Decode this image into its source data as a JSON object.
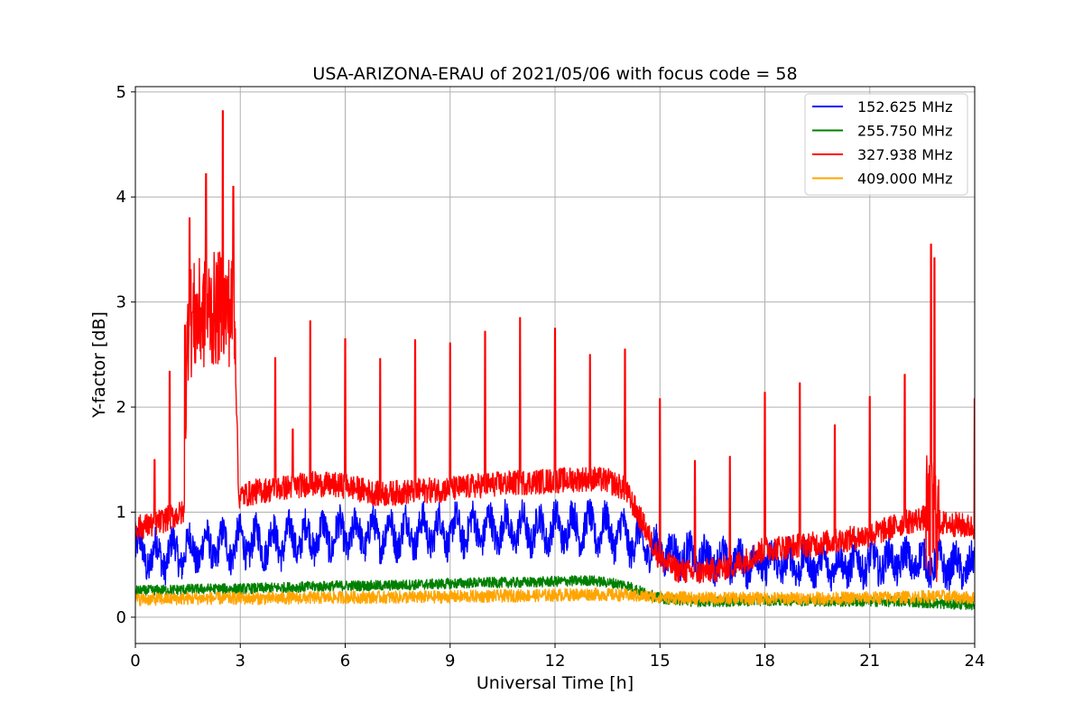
{
  "chart_data": {
    "type": "line",
    "title": "USA-ARIZONA-ERAU of 2021/05/06 with focus code = 58",
    "xlabel": "Universal Time [h]",
    "ylabel": "Y-factor [dB]",
    "xlim": [
      0,
      24
    ],
    "ylim": [
      -0.25,
      5.05
    ],
    "xticks": [
      0,
      3,
      6,
      9,
      12,
      15,
      18,
      21,
      24
    ],
    "yticks": [
      0,
      1,
      2,
      3,
      4,
      5
    ],
    "grid": true,
    "legend_position": "top-right",
    "series": [
      {
        "name": "152.625 MHz",
        "color": "#0000ff",
        "x": [
          0,
          0.5,
          1,
          1.5,
          2,
          2.5,
          3,
          3.5,
          4,
          4.5,
          5,
          5.5,
          6,
          6.5,
          7,
          7.5,
          8,
          8.5,
          9,
          9.5,
          10,
          10.5,
          11,
          11.5,
          12,
          12.5,
          13,
          13.5,
          14,
          14.5,
          15,
          15.5,
          16,
          16.5,
          17,
          17.5,
          18,
          18.5,
          19,
          19.5,
          20,
          20.5,
          21,
          21.5,
          22,
          22.5,
          23,
          23.5,
          24
        ],
        "y": [
          0.62,
          0.58,
          0.6,
          0.63,
          0.66,
          0.68,
          0.7,
          0.7,
          0.72,
          0.74,
          0.76,
          0.77,
          0.78,
          0.79,
          0.8,
          0.8,
          0.81,
          0.82,
          0.82,
          0.83,
          0.84,
          0.84,
          0.83,
          0.83,
          0.84,
          0.86,
          0.85,
          0.82,
          0.78,
          0.68,
          0.62,
          0.6,
          0.57,
          0.55,
          0.53,
          0.52,
          0.52,
          0.52,
          0.51,
          0.51,
          0.5,
          0.51,
          0.52,
          0.53,
          0.54,
          0.52,
          0.5,
          0.48,
          0.47
        ],
        "noise": 0.16
      },
      {
        "name": "255.750 MHz",
        "color": "#008000",
        "x": [
          0,
          1,
          2,
          3,
          4,
          5,
          6,
          7,
          8,
          9,
          10,
          11,
          12,
          13,
          14,
          14.5,
          15,
          16,
          17,
          18,
          19,
          20,
          21,
          22,
          23,
          24
        ],
        "y": [
          0.25,
          0.26,
          0.27,
          0.27,
          0.28,
          0.29,
          0.3,
          0.3,
          0.31,
          0.32,
          0.33,
          0.33,
          0.34,
          0.35,
          0.31,
          0.24,
          0.18,
          0.15,
          0.15,
          0.16,
          0.16,
          0.15,
          0.15,
          0.15,
          0.13,
          0.12
        ],
        "noise": 0.05
      },
      {
        "name": "327.938 MHz",
        "color": "#ff0000",
        "x": [
          0,
          0.5,
          1,
          1.4,
          1.5,
          2,
          2.5,
          2.85,
          2.95,
          3.5,
          4,
          5,
          6,
          7,
          8,
          9,
          10,
          11,
          12,
          13,
          13.5,
          14,
          14.5,
          15,
          15.5,
          16,
          16.5,
          17,
          17.5,
          18,
          19,
          20,
          21,
          22,
          22.6,
          23,
          23.5,
          24
        ],
        "y": [
          0.85,
          0.88,
          0.95,
          1.0,
          2.8,
          2.9,
          2.95,
          2.9,
          1.15,
          1.2,
          1.22,
          1.27,
          1.25,
          1.17,
          1.2,
          1.22,
          1.26,
          1.28,
          1.3,
          1.32,
          1.3,
          1.22,
          0.9,
          0.55,
          0.45,
          0.42,
          0.45,
          0.48,
          0.55,
          0.65,
          0.68,
          0.72,
          0.78,
          0.9,
          0.95,
          0.9,
          0.88,
          0.85
        ],
        "noise": 0.12
      },
      {
        "name": "409.000 MHz",
        "color": "#ffa500",
        "x": [
          0,
          2,
          4,
          6,
          8,
          10,
          12,
          13,
          14,
          15,
          16,
          18,
          20,
          22,
          23,
          24
        ],
        "y": [
          0.17,
          0.18,
          0.18,
          0.19,
          0.19,
          0.2,
          0.21,
          0.22,
          0.21,
          0.19,
          0.18,
          0.18,
          0.18,
          0.19,
          0.2,
          0.18
        ],
        "noise": 0.06
      }
    ],
    "spikes": [
      {
        "series": 2,
        "x": 0.55,
        "y": 1.5
      },
      {
        "series": 2,
        "x": 0.98,
        "y": 2.34
      },
      {
        "series": 2,
        "x": 1.42,
        "y": 2.78
      },
      {
        "series": 2,
        "x": 1.55,
        "y": 3.8
      },
      {
        "series": 2,
        "x": 2.02,
        "y": 4.22
      },
      {
        "series": 2,
        "x": 2.5,
        "y": 4.82
      },
      {
        "series": 2,
        "x": 2.8,
        "y": 4.1
      },
      {
        "series": 2,
        "x": 4.0,
        "y": 2.47
      },
      {
        "series": 2,
        "x": 4.5,
        "y": 1.79
      },
      {
        "series": 2,
        "x": 5.0,
        "y": 2.82
      },
      {
        "series": 2,
        "x": 6.0,
        "y": 2.65
      },
      {
        "series": 2,
        "x": 7.0,
        "y": 2.46
      },
      {
        "series": 2,
        "x": 8.0,
        "y": 2.64
      },
      {
        "series": 2,
        "x": 9.0,
        "y": 2.61
      },
      {
        "series": 2,
        "x": 10.0,
        "y": 2.72
      },
      {
        "series": 2,
        "x": 11.0,
        "y": 2.85
      },
      {
        "series": 2,
        "x": 12.0,
        "y": 2.75
      },
      {
        "series": 2,
        "x": 13.0,
        "y": 2.5
      },
      {
        "series": 2,
        "x": 14.0,
        "y": 2.55
      },
      {
        "series": 2,
        "x": 15.0,
        "y": 2.08
      },
      {
        "series": 2,
        "x": 16.0,
        "y": 1.49
      },
      {
        "series": 2,
        "x": 17.0,
        "y": 1.53
      },
      {
        "series": 2,
        "x": 18.0,
        "y": 2.14
      },
      {
        "series": 2,
        "x": 19.0,
        "y": 2.23
      },
      {
        "series": 2,
        "x": 20.0,
        "y": 1.83
      },
      {
        "series": 2,
        "x": 21.0,
        "y": 2.1
      },
      {
        "series": 2,
        "x": 22.0,
        "y": 2.31
      },
      {
        "series": 2,
        "x": 22.75,
        "y": 3.55
      },
      {
        "series": 2,
        "x": 22.85,
        "y": 3.42
      },
      {
        "series": 2,
        "x": 24.0,
        "y": 2.08
      }
    ]
  }
}
